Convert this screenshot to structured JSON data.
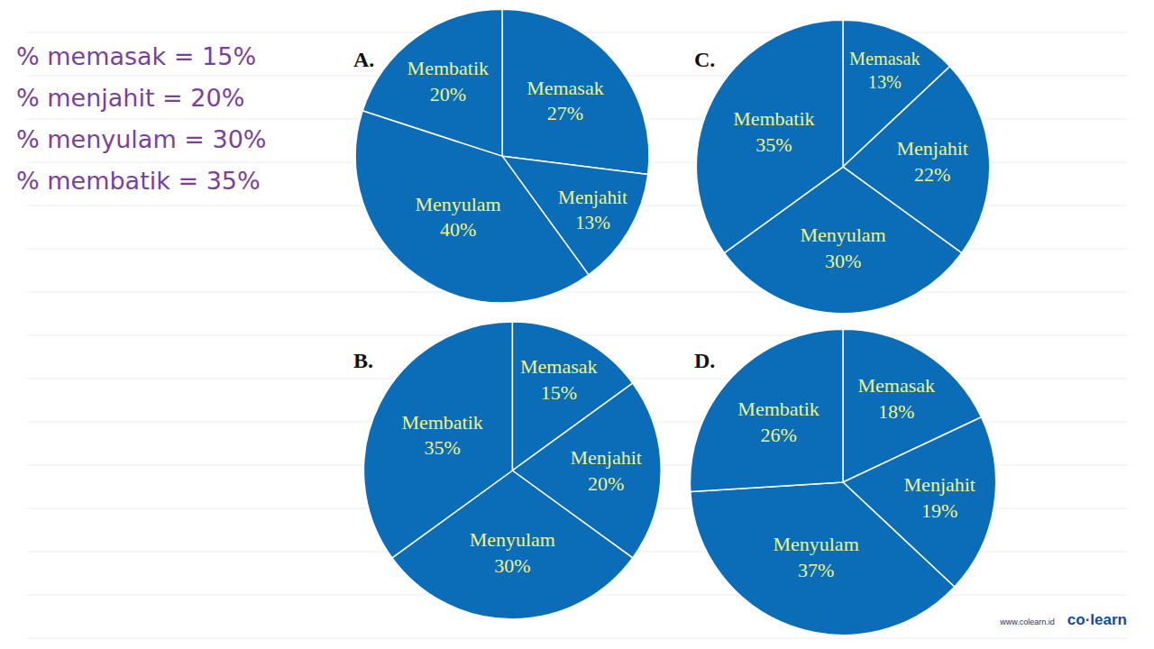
{
  "given": [
    "% memasak = 15%",
    "% menjahit = 20%",
    "% menyulam = 30%",
    "% membatik = 35%"
  ],
  "footer": [
    "www.colearn.id",
    "co·learn"
  ],
  "chart_data": [
    {
      "type": "pie",
      "title": "A.",
      "categories": [
        "Memasak",
        "Menjahit",
        "Menyulam",
        "Membatik"
      ],
      "values": [
        27,
        13,
        40,
        20
      ],
      "value_labels": [
        "27%",
        "13%",
        "40%",
        "20%"
      ],
      "data_labels": true,
      "color": "#0b6db8"
    },
    {
      "type": "pie",
      "title": "B.",
      "categories": [
        "Memasak",
        "Menjahit",
        "Menyulam",
        "Membatik"
      ],
      "values": [
        15,
        20,
        30,
        35
      ],
      "value_labels": [
        "15%",
        "20%",
        "30%",
        "35%"
      ],
      "data_labels": true,
      "color": "#0b6db8"
    },
    {
      "type": "pie",
      "title": "C.",
      "categories": [
        "Memasak",
        "Menjahit",
        "Menyulam",
        "Membatik"
      ],
      "values": [
        13,
        22,
        30,
        35
      ],
      "value_labels": [
        "13%",
        "22%",
        "30%",
        "35%"
      ],
      "data_labels": true,
      "color": "#0b6db8"
    },
    {
      "type": "pie",
      "title": "D.",
      "categories": [
        "Memasak",
        "Menjahit",
        "Menyulam",
        "Membatik"
      ],
      "values": [
        18,
        19,
        37,
        26
      ],
      "value_labels": [
        "18%",
        "19%",
        "37%",
        "26%"
      ],
      "data_labels": true,
      "color": "#0b6db8"
    }
  ]
}
